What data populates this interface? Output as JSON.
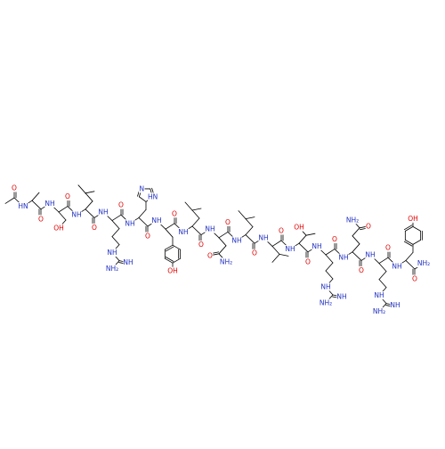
{
  "backbone": {
    "carbonyl_o": [
      "O",
      "O",
      "O",
      "O",
      "O",
      "O",
      "O",
      "O",
      "O",
      "O",
      "O",
      "O",
      "O",
      "O",
      "O",
      "O"
    ],
    "amide_n": [
      "HN",
      "NH",
      "NH",
      "NH",
      "NH",
      "NH",
      "NH",
      "NH",
      "NH",
      "NH",
      "NH",
      "NH",
      "NH",
      "NH",
      "NH"
    ],
    "c_terminal": "NH₂"
  },
  "side_chains": [
    [],
    [
      "OH"
    ],
    [],
    [
      "NH",
      "NH₂",
      "NH"
    ],
    [
      "N",
      "HN"
    ],
    [
      "OH"
    ],
    [],
    [
      "NH₂",
      "O"
    ],
    [],
    [],
    [
      "OH"
    ],
    [
      "NH",
      "NH₂",
      "NH"
    ],
    [
      "NH₂",
      "O"
    ],
    [
      "NH",
      "NH₂",
      "NH"
    ],
    [
      "OH"
    ]
  ]
}
